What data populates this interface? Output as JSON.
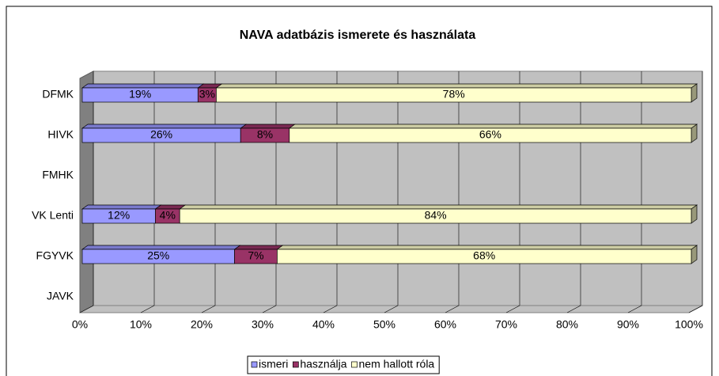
{
  "chart_data": {
    "type": "bar3d_stacked_horizontal",
    "title": "NAVA adatbázis ismerete és használata",
    "categories": [
      "DFMK",
      "HIVK",
      "FMHK",
      "VK Lenti",
      "FGYVK",
      "JAVK"
    ],
    "series": [
      {
        "name": "ismeri",
        "color": "#9999ff",
        "values": [
          19,
          26,
          null,
          12,
          25,
          null
        ],
        "value_labels": [
          "19%",
          "26%",
          null,
          "12%",
          "25%",
          null
        ]
      },
      {
        "name": "használja",
        "color": "#993366",
        "values": [
          3,
          8,
          null,
          4,
          7,
          null
        ],
        "value_labels": [
          "3%",
          "8%",
          null,
          "4%",
          "7%",
          null
        ]
      },
      {
        "name": "nem hallott róla",
        "color": "#ffffcc",
        "values": [
          78,
          66,
          null,
          84,
          68,
          null
        ],
        "value_labels": [
          "78%",
          "66%",
          null,
          "84%",
          "68%",
          null
        ]
      }
    ],
    "xlim": [
      0,
      100
    ],
    "xticks": [
      {
        "value": 0,
        "label": "0%"
      },
      {
        "value": 10,
        "label": "10%"
      },
      {
        "value": 20,
        "label": "20%"
      },
      {
        "value": 30,
        "label": "30%"
      },
      {
        "value": 40,
        "label": "40%"
      },
      {
        "value": 50,
        "label": "50%"
      },
      {
        "value": 60,
        "label": "60%"
      },
      {
        "value": 70,
        "label": "70%"
      },
      {
        "value": 80,
        "label": "80%"
      },
      {
        "value": 90,
        "label": "90%"
      },
      {
        "value": 100,
        "label": "100%"
      }
    ],
    "grid": true,
    "legend": "bottom"
  }
}
